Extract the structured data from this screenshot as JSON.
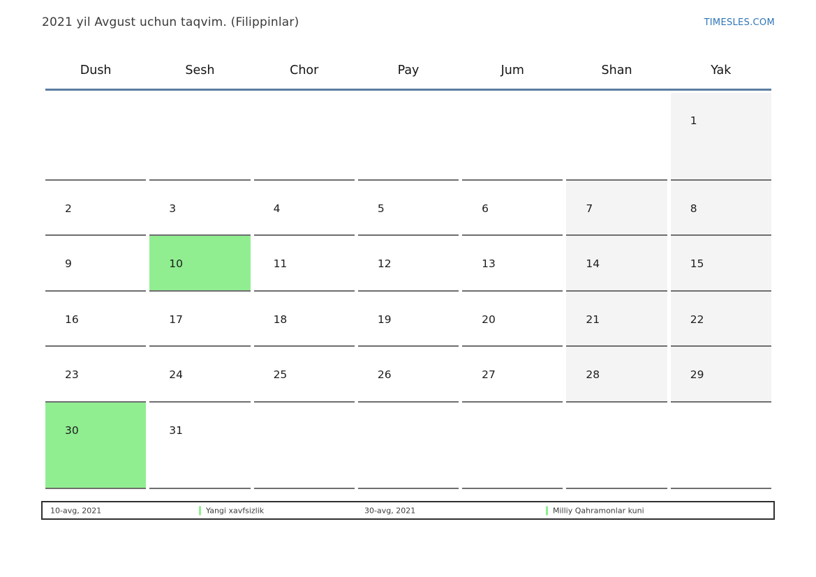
{
  "page": {
    "title": "2021 yil Avgust uchun taqvim. (Filippinlar)",
    "site_link": "TIMESLES.COM"
  },
  "calendar": {
    "weekday_headers": [
      "Dush",
      "Sesh",
      "Chor",
      "Pay",
      "Jum",
      "Shan",
      "Yak"
    ],
    "weeks": [
      [
        "",
        "",
        "",
        "",
        "",
        "",
        "1"
      ],
      [
        "2",
        "3",
        "4",
        "5",
        "6",
        "7",
        "8"
      ],
      [
        "9",
        "10",
        "11",
        "12",
        "13",
        "14",
        "15"
      ],
      [
        "16",
        "17",
        "18",
        "19",
        "20",
        "21",
        "22"
      ],
      [
        "23",
        "24",
        "25",
        "26",
        "27",
        "28",
        "29"
      ],
      [
        "30",
        "31",
        "",
        "",
        "",
        "",
        ""
      ]
    ],
    "holiday_days": [
      "10",
      "30"
    ],
    "colors": {
      "holiday_green": "#90ee90",
      "weekend_gray": "#f4f4f4",
      "rule_blue": "#5b7da2",
      "link_blue": "#2e75b6",
      "cell_border": "#6e6e6e"
    }
  },
  "legend": {
    "items": [
      {
        "date": "10-avg, 2021",
        "label": "Yangi xavfsizlik"
      },
      {
        "date": "30-avg, 2021",
        "label": "Milliy Qahramonlar kuni"
      }
    ]
  }
}
